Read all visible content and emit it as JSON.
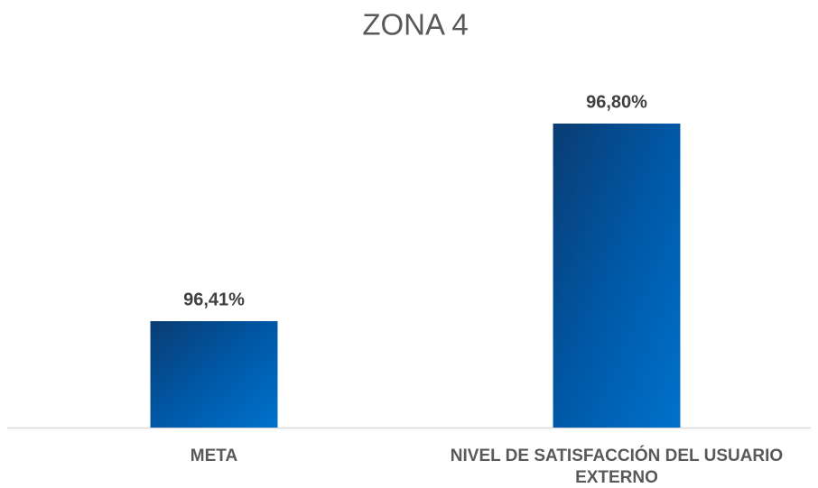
{
  "chart_data": {
    "type": "bar",
    "title": "ZONA 4",
    "categories": [
      "META",
      "NIVEL DE SATISFACCIÓN DEL USUARIO EXTERNO"
    ],
    "values": [
      96.41,
      96.8
    ],
    "value_labels": [
      "96,41%",
      "96,80%"
    ],
    "color": "#0066b8",
    "ylim": [
      96.2,
      96.9
    ]
  }
}
